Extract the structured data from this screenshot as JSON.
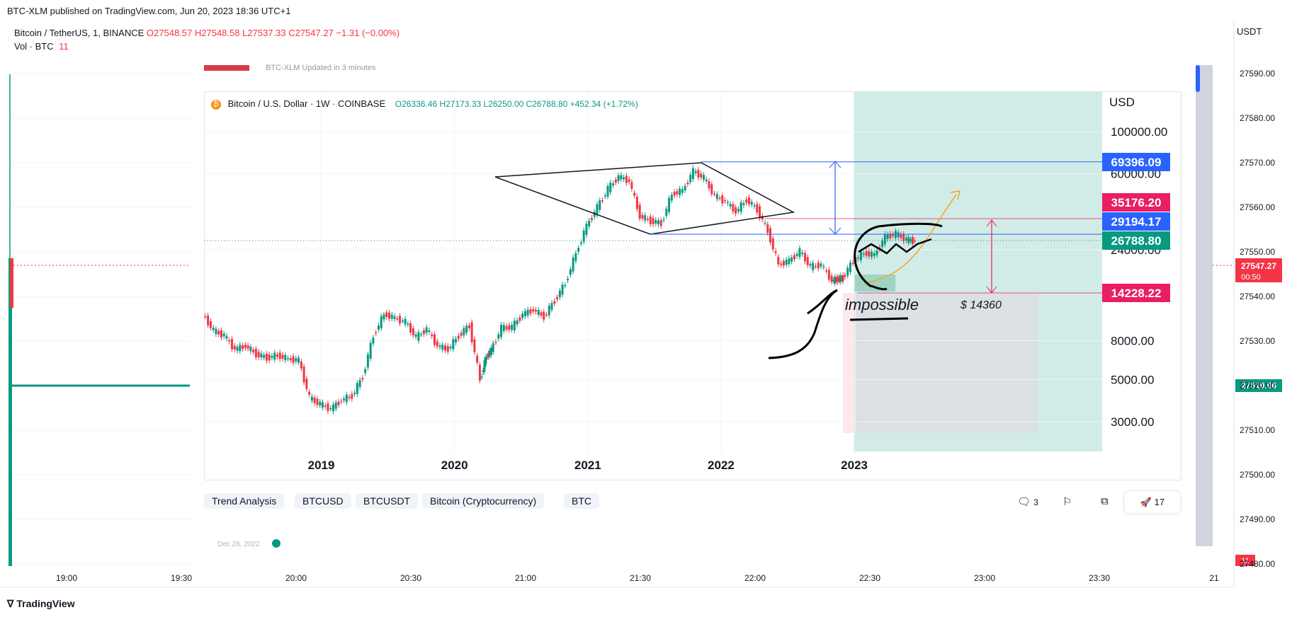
{
  "header": {
    "published": "BTC-XLM published on TradingView.com, Jun 20, 2023 18:36 UTC+1",
    "symbol": "Bitcoin / TetherUS, 1, BINANCE",
    "open": "O27548.57",
    "high": "H27548.58",
    "low": "L27537.33",
    "close": "C27547.27",
    "change": "−1.31 (−0.00%)",
    "vol_label": "Vol · BTC",
    "vol_value": "11",
    "currency": "USDT"
  },
  "footer": {
    "brand": "TradingView"
  },
  "colors": {
    "up": "#089981",
    "down": "#f23645",
    "accent": "#2962ff",
    "tag_red": "#e91e63",
    "tag_blue": "#2962ff",
    "tag_green": "#089981",
    "target_zone": "#d1ece6",
    "stop_zone": "#fde9ec"
  },
  "chart_data": [
    {
      "type": "line",
      "title": "Bitcoin / TetherUS, 1, BINANCE",
      "x_ticks": [
        "19:00",
        "19:30",
        "20:00",
        "20:30",
        "21:00",
        "21:30",
        "22:00",
        "22:30",
        "23:00",
        "23:30",
        "21"
      ],
      "y_ticks": [
        "27590.00",
        "27580.00",
        "27570.00",
        "27560.00",
        "27550.00",
        "27540.00",
        "27530.00",
        "27520.00",
        "27510.00",
        "27500.00",
        "27490.00",
        "27480.00"
      ],
      "ylim": [
        27480,
        27595
      ],
      "last_price": "27547.27",
      "countdown": "00:50",
      "level_price": "27519.96",
      "volume_tag": "11"
    },
    {
      "type": "line",
      "title": "Bitcoin / U.S. Dollar · 1W · COINBASE",
      "ohlc": "O26336.46 H27173.33 L26250.00 C26788.80 +452.34 (+1.72%)",
      "scale": "log",
      "currency": "USD",
      "x_ticks": [
        "2019",
        "2020",
        "2021",
        "2022",
        "2023"
      ],
      "x_tick_years": [
        2019,
        2020,
        2021,
        2022,
        2023
      ],
      "y_ticks": [
        "100000.00",
        "60000.00",
        "24000.00",
        "8000.00",
        "5000.00",
        "3000.00"
      ],
      "y_tick_values": [
        100000,
        60000,
        24000,
        8000,
        5000,
        3000
      ],
      "ylim": [
        2300,
        140000
      ],
      "xlim": [
        2018.12,
        2024.86
      ],
      "series": [
        {
          "name": "BTC weekly close",
          "x": [
            2018.12,
            2018.2,
            2018.28,
            2018.36,
            2018.44,
            2018.52,
            2018.6,
            2018.68,
            2018.76,
            2018.84,
            2018.92,
            2019.0,
            2019.08,
            2019.16,
            2019.24,
            2019.32,
            2019.4,
            2019.48,
            2019.56,
            2019.64,
            2019.72,
            2019.8,
            2019.88,
            2019.96,
            2020.04,
            2020.12,
            2020.2,
            2020.24,
            2020.28,
            2020.36,
            2020.44,
            2020.52,
            2020.6,
            2020.68,
            2020.76,
            2020.84,
            2020.92,
            2021.0,
            2021.08,
            2021.16,
            2021.24,
            2021.32,
            2021.4,
            2021.48,
            2021.56,
            2021.64,
            2021.72,
            2021.8,
            2021.88,
            2021.96,
            2022.04,
            2022.12,
            2022.2,
            2022.28,
            2022.36,
            2022.44,
            2022.52,
            2022.6,
            2022.68,
            2022.76,
            2022.84,
            2022.88,
            2022.92,
            2023.0,
            2023.08,
            2023.16,
            2023.24,
            2023.32,
            2023.4,
            2023.46
          ],
          "values": [
            11000,
            9000,
            8500,
            7200,
            7500,
            6800,
            6500,
            6700,
            6400,
            6300,
            4000,
            3700,
            3500,
            3900,
            4100,
            5200,
            8500,
            11000,
            10500,
            10000,
            8300,
            9200,
            7500,
            7200,
            8500,
            9600,
            5000,
            6500,
            7100,
            9300,
            9400,
            11000,
            11600,
            10700,
            13000,
            16000,
            23000,
            32000,
            40000,
            50000,
            58000,
            55000,
            36000,
            34000,
            33000,
            47000,
            49000,
            62000,
            57000,
            46000,
            43000,
            38000,
            44000,
            39000,
            30000,
            20000,
            21000,
            23500,
            19500,
            20000,
            16500,
            16800,
            17000,
            21000,
            23000,
            22500,
            28000,
            29000,
            27000,
            26788.8
          ]
        }
      ],
      "price_labels": [
        "69396.09",
        "35176.20",
        "29194.17",
        "26788.80",
        "14228.22"
      ],
      "annotations": [
        "impossible",
        "$ 14360"
      ],
      "tags": [
        "Trend Analysis",
        "BTCUSD",
        "BTCUSDT",
        "Bitcoin (Cryptocurrency)",
        "BTC"
      ],
      "comment_count": "3",
      "boost_count": "17",
      "card_header": "BTC-XLM",
      "card_sub": "Updated in 3 minutes",
      "date_stub": "Dec 28, 2022"
    }
  ]
}
